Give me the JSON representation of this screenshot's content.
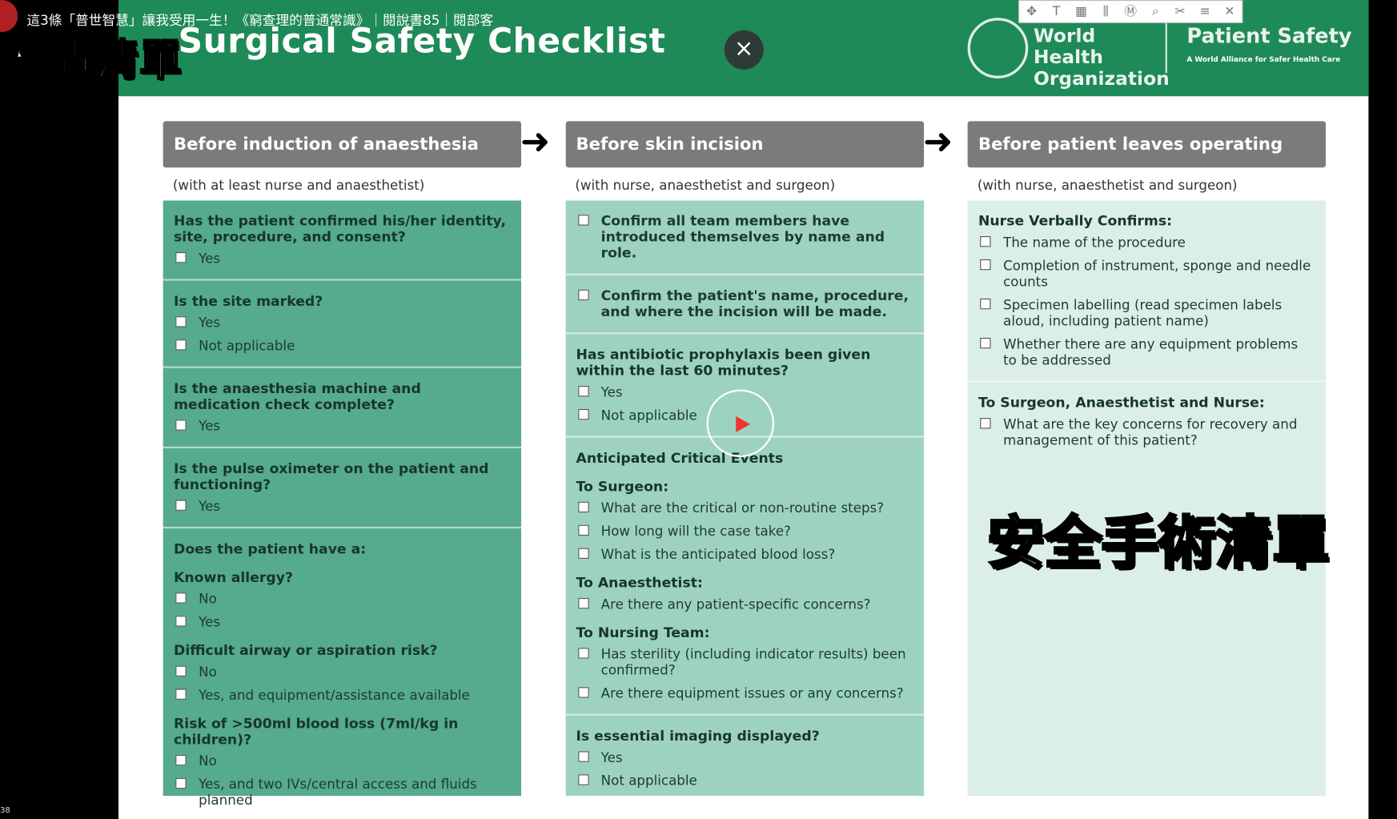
{
  "video_title": "這3條「普世智慧」讓我受用一生！《窮查理的普通常識》｜閱說書85｜閱部客",
  "subtitle_left": "檢查清單",
  "subtitle_right": "安全手術清單",
  "corner_text": "38",
  "checklist": {
    "title": "Surgical Safety Checklist",
    "org": "World Health Organization",
    "brand": "Patient Safety",
    "brand_tagline": "A World Alliance for Safer Health Care",
    "columns": [
      {
        "header": "Before induction of anaesthesia",
        "note": "(with at least nurse and anaesthetist)",
        "blocks": [
          [
            {
              "heading": "Has the patient confirmed his/her identity, site, procedure, and consent?",
              "items": [
                "Yes"
              ]
            }
          ],
          [
            {
              "heading": "Is the site marked?",
              "items": [
                "Yes",
                "Not applicable"
              ]
            }
          ],
          [
            {
              "heading": "Is the anaesthesia machine and medication check complete?",
              "items": [
                "Yes"
              ]
            }
          ],
          [
            {
              "heading": "Is the pulse oximeter on the patient and functioning?",
              "items": [
                "Yes"
              ]
            }
          ],
          [
            {
              "heading": "Does the patient have a:"
            },
            {
              "heading": "Known allergy?",
              "items": [
                "No",
                "Yes"
              ]
            },
            {
              "heading": "Difficult airway or aspiration risk?",
              "items": [
                "No",
                "Yes, and equipment/assistance available"
              ]
            },
            {
              "heading": "Risk of >500ml blood loss (7ml/kg in children)?",
              "items": [
                "No",
                "Yes, and two IVs/central access and fluids planned"
              ]
            }
          ]
        ]
      },
      {
        "header": "Before skin incision",
        "note": "(with nurse, anaesthetist and surgeon)",
        "blocks": [
          [
            {
              "items": [
                "Confirm all team members have introduced themselves by name and role."
              ]
            }
          ],
          [
            {
              "items": [
                "Confirm the patient's name, procedure, and where the incision will be made."
              ]
            }
          ],
          [
            {
              "heading": "Has antibiotic prophylaxis been given within the last 60 minutes?",
              "items": [
                "Yes",
                "Not applicable"
              ]
            }
          ],
          [
            {
              "heading": "Anticipated Critical Events"
            },
            {
              "heading": "To Surgeon:",
              "items": [
                "What are the critical or non-routine steps?",
                "How long will the case take?",
                "What is the anticipated blood loss?"
              ]
            },
            {
              "heading": "To Anaesthetist:",
              "items": [
                "Are there any patient-specific concerns?"
              ]
            },
            {
              "heading": "To Nursing Team:",
              "items": [
                "Has sterility (including indicator results) been confirmed?",
                "Are there equipment issues or any concerns?"
              ]
            }
          ],
          [
            {
              "heading": "Is essential imaging displayed?",
              "items": [
                "Yes",
                "Not applicable"
              ]
            }
          ]
        ]
      },
      {
        "header": "Before patient leaves operating room",
        "note": "(with nurse, anaesthetist and surgeon)",
        "blocks": [
          [
            {
              "heading": "Nurse Verbally Confirms:",
              "items": [
                "The name of the procedure",
                "Completion of instrument, sponge and needle counts",
                "Specimen labelling (read specimen labels aloud, including patient name)",
                "Whether there are any equipment problems to be addressed"
              ]
            }
          ],
          [
            {
              "heading": "To Surgeon, Anaesthetist and Nurse:",
              "items": [
                "What are the key concerns for recovery and management of this patient?"
              ]
            }
          ]
        ]
      }
    ]
  }
}
